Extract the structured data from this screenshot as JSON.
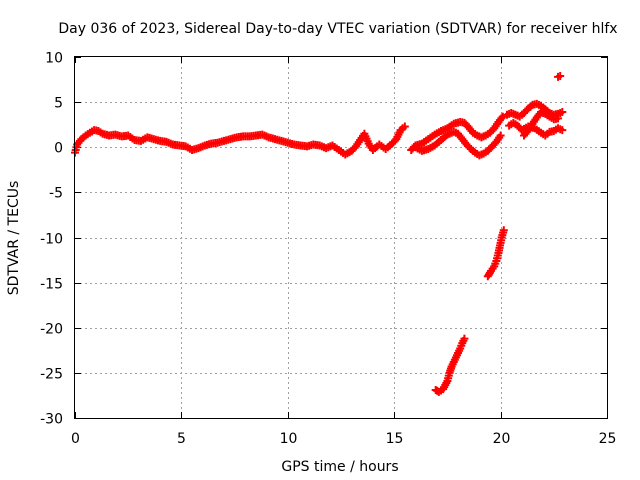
{
  "chart_data": {
    "type": "scatter",
    "title": "Day 036 of 2023, Sidereal Day-to-day VTEC variation (SDTVAR) for receiver hlfx",
    "xlabel": "GPS time / hours",
    "ylabel": "SDTVAR / TECUs",
    "xlim": [
      0,
      25
    ],
    "ylim": [
      -30,
      10
    ],
    "xticks": [
      0,
      5,
      10,
      15,
      20,
      25
    ],
    "yticks": [
      -30,
      -25,
      -20,
      -15,
      -10,
      -5,
      0,
      5,
      10
    ],
    "xtick_labels": [
      "0",
      "5",
      "10",
      "15",
      "20",
      "25"
    ],
    "ytick_labels": [
      "-30",
      "-25",
      "-20",
      "-15",
      "-10",
      "-5",
      "0",
      "5",
      "10"
    ],
    "grid": true,
    "marker": "plus",
    "color": "#ff0000",
    "series": [
      {
        "name": "main-band",
        "points": [
          [
            0.0,
            -0.6
          ],
          [
            0.1,
            0.3
          ],
          [
            0.3,
            0.9
          ],
          [
            0.5,
            1.3
          ],
          [
            0.7,
            1.6
          ],
          [
            0.9,
            1.9
          ],
          [
            1.1,
            1.8
          ],
          [
            1.3,
            1.5
          ],
          [
            1.6,
            1.3
          ],
          [
            1.9,
            1.4
          ],
          [
            2.2,
            1.2
          ],
          [
            2.5,
            1.3
          ],
          [
            2.8,
            0.8
          ],
          [
            3.1,
            0.7
          ],
          [
            3.4,
            1.1
          ],
          [
            3.7,
            0.9
          ],
          [
            4.0,
            0.7
          ],
          [
            4.3,
            0.6
          ],
          [
            4.6,
            0.3
          ],
          [
            4.9,
            0.2
          ],
          [
            5.2,
            0.1
          ],
          [
            5.5,
            -0.3
          ],
          [
            5.8,
            -0.1
          ],
          [
            6.1,
            0.2
          ],
          [
            6.4,
            0.4
          ],
          [
            6.7,
            0.5
          ],
          [
            7.0,
            0.7
          ],
          [
            7.3,
            0.9
          ],
          [
            7.6,
            1.1
          ],
          [
            7.9,
            1.2
          ],
          [
            8.2,
            1.2
          ],
          [
            8.5,
            1.3
          ],
          [
            8.8,
            1.4
          ],
          [
            9.1,
            1.1
          ],
          [
            9.4,
            0.9
          ],
          [
            9.7,
            0.7
          ],
          [
            10.0,
            0.5
          ],
          [
            10.3,
            0.3
          ],
          [
            10.6,
            0.2
          ],
          [
            10.9,
            0.1
          ],
          [
            11.2,
            0.3
          ],
          [
            11.5,
            0.2
          ],
          [
            11.8,
            -0.1
          ],
          [
            12.1,
            0.2
          ],
          [
            12.4,
            -0.3
          ],
          [
            12.7,
            -0.8
          ],
          [
            13.0,
            -0.4
          ],
          [
            13.2,
            0.1
          ],
          [
            13.4,
            0.8
          ],
          [
            13.6,
            1.5
          ],
          [
            13.8,
            0.4
          ],
          [
            14.0,
            -0.3
          ],
          [
            14.3,
            0.3
          ],
          [
            14.6,
            -0.2
          ],
          [
            14.9,
            0.4
          ],
          [
            15.1,
            0.9
          ],
          [
            15.3,
            1.9
          ],
          [
            15.5,
            2.3
          ]
        ]
      },
      {
        "name": "upper-wave",
        "points": [
          [
            15.8,
            -0.3
          ],
          [
            16.0,
            0.2
          ],
          [
            16.3,
            0.4
          ],
          [
            16.6,
            0.9
          ],
          [
            16.9,
            1.4
          ],
          [
            17.2,
            1.8
          ],
          [
            17.5,
            2.1
          ],
          [
            17.8,
            2.6
          ],
          [
            18.1,
            2.8
          ],
          [
            18.3,
            2.7
          ],
          [
            18.5,
            2.2
          ],
          [
            18.7,
            1.6
          ],
          [
            18.9,
            1.3
          ],
          [
            19.1,
            1.1
          ],
          [
            19.3,
            1.3
          ],
          [
            19.5,
            1.6
          ],
          [
            19.7,
            2.1
          ],
          [
            19.9,
            2.8
          ],
          [
            20.1,
            3.4
          ]
        ]
      },
      {
        "name": "lower-wave",
        "points": [
          [
            16.0,
            0.0
          ],
          [
            16.3,
            -0.4
          ],
          [
            16.6,
            -0.2
          ],
          [
            16.9,
            0.2
          ],
          [
            17.2,
            0.8
          ],
          [
            17.5,
            1.4
          ],
          [
            17.8,
            1.7
          ],
          [
            18.0,
            1.5
          ],
          [
            18.2,
            0.9
          ],
          [
            18.4,
            0.3
          ],
          [
            18.6,
            -0.2
          ],
          [
            18.8,
            -0.6
          ],
          [
            19.0,
            -0.9
          ],
          [
            19.2,
            -0.7
          ],
          [
            19.4,
            -0.4
          ],
          [
            19.6,
            0.1
          ],
          [
            19.8,
            0.6
          ],
          [
            20.0,
            1.3
          ]
        ]
      },
      {
        "name": "late-upper",
        "points": [
          [
            20.3,
            3.6
          ],
          [
            20.5,
            3.8
          ],
          [
            20.7,
            3.6
          ],
          [
            20.9,
            3.4
          ],
          [
            21.1,
            3.8
          ],
          [
            21.3,
            4.3
          ],
          [
            21.5,
            4.7
          ],
          [
            21.7,
            4.8
          ],
          [
            21.9,
            4.6
          ],
          [
            22.1,
            4.2
          ],
          [
            22.3,
            3.8
          ],
          [
            22.5,
            3.6
          ],
          [
            22.7,
            3.7
          ],
          [
            22.9,
            3.9
          ]
        ]
      },
      {
        "name": "late-lower",
        "points": [
          [
            20.4,
            2.4
          ],
          [
            20.6,
            2.7
          ],
          [
            20.8,
            2.4
          ],
          [
            21.0,
            1.9
          ],
          [
            21.3,
            2.3
          ],
          [
            21.6,
            2.1
          ],
          [
            21.9,
            1.6
          ],
          [
            22.1,
            1.3
          ],
          [
            22.3,
            1.7
          ],
          [
            22.5,
            1.8
          ],
          [
            22.7,
            2.1
          ],
          [
            22.9,
            1.9
          ]
        ]
      },
      {
        "name": "late-middle",
        "points": [
          [
            21.1,
            1.3
          ],
          [
            21.3,
            1.9
          ],
          [
            21.5,
            2.6
          ],
          [
            21.7,
            3.3
          ],
          [
            21.9,
            3.9
          ],
          [
            22.1,
            3.7
          ],
          [
            22.3,
            3.4
          ],
          [
            22.5,
            3.1
          ],
          [
            22.7,
            3.2
          ]
        ]
      },
      {
        "name": "outlier-high",
        "points": [
          [
            22.7,
            7.8
          ],
          [
            22.8,
            7.9
          ]
        ]
      },
      {
        "name": "drop-short",
        "points": [
          [
            19.4,
            -14.3
          ],
          [
            19.55,
            -13.7
          ],
          [
            19.7,
            -13.2
          ],
          [
            19.8,
            -12.6
          ],
          [
            19.9,
            -11.7
          ],
          [
            20.0,
            -10.6
          ],
          [
            20.05,
            -10.0
          ],
          [
            20.15,
            -9.2
          ]
        ]
      },
      {
        "name": "drop-long",
        "points": [
          [
            16.95,
            -26.9
          ],
          [
            17.1,
            -27.1
          ],
          [
            17.3,
            -26.8
          ],
          [
            17.5,
            -25.9
          ],
          [
            17.6,
            -25.0
          ],
          [
            17.7,
            -24.3
          ],
          [
            17.8,
            -23.8
          ],
          [
            17.9,
            -23.3
          ],
          [
            18.0,
            -22.8
          ],
          [
            18.1,
            -22.3
          ],
          [
            18.2,
            -21.7
          ],
          [
            18.3,
            -21.2
          ]
        ]
      }
    ]
  }
}
